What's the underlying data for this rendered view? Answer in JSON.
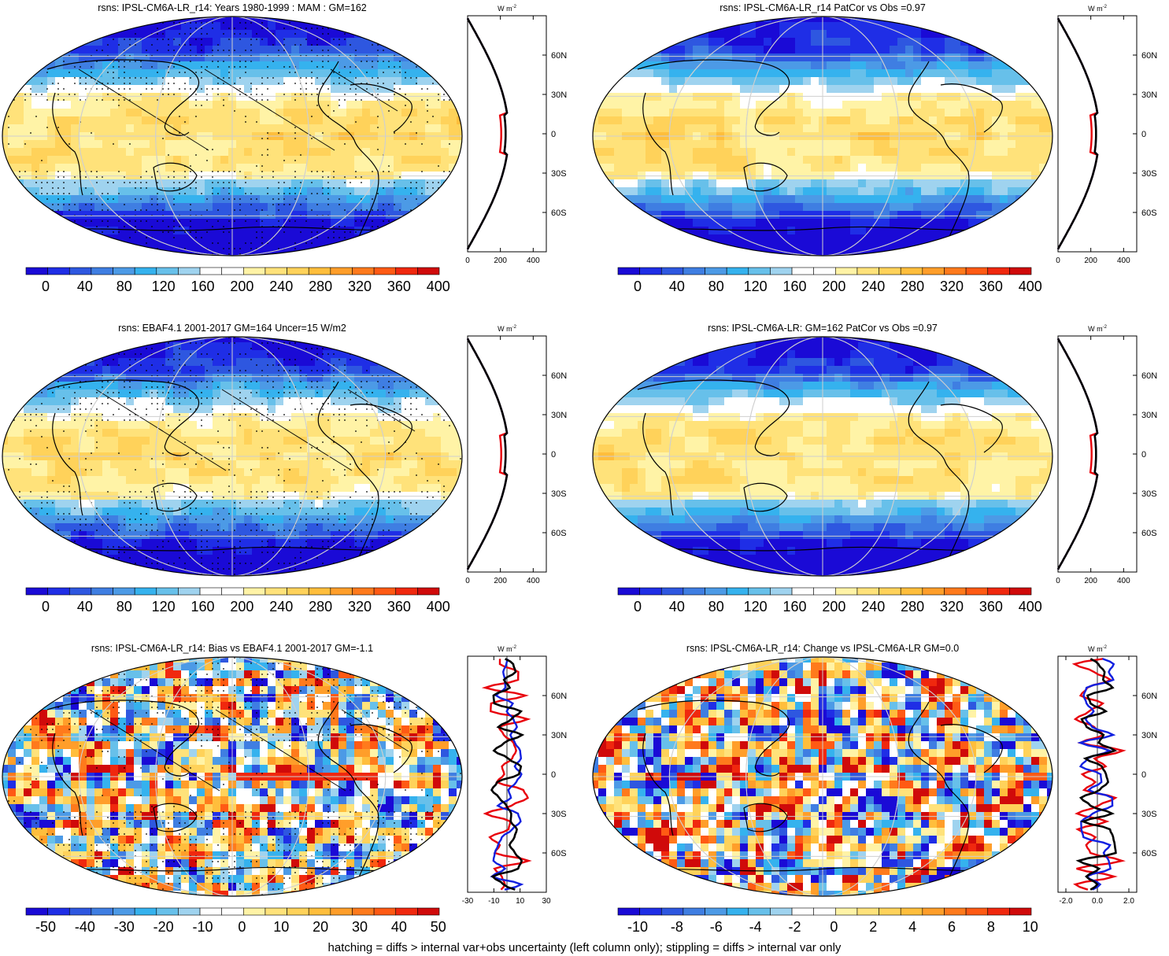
{
  "panels": [
    {
      "title": "rsns: IPSL-CM6A-LR_r14: Years 1980-1999 : MAM : GM=162",
      "scale": "abs",
      "hatch": true,
      "stipple": true,
      "colorbar_labels": [
        "0",
        "40",
        "80",
        "120",
        "160",
        "200",
        "240",
        "280",
        "320",
        "360",
        "400"
      ],
      "profile_xticks": [
        "0",
        "200",
        "400"
      ],
      "profile_range": [
        0,
        480
      ],
      "profile_lat_labels": [
        "60N",
        "30N",
        "0",
        "30S",
        "60S"
      ],
      "profile_unit": "W m-2"
    },
    {
      "title": "rsns: IPSL-CM6A-LR_r14 PatCor vs Obs =0.97",
      "scale": "abs",
      "hatch": false,
      "stipple": false,
      "colorbar_labels": [
        "0",
        "40",
        "80",
        "120",
        "160",
        "200",
        "240",
        "280",
        "320",
        "360",
        "400"
      ],
      "profile_xticks": [
        "0",
        "200",
        "400"
      ],
      "profile_range": [
        0,
        480
      ],
      "profile_lat_labels": [
        "60N",
        "30N",
        "0",
        "30S",
        "60S"
      ],
      "profile_unit": "W m-2"
    },
    {
      "title": "rsns: EBAF4.1 2001-2017 GM=164 Uncer=15 W/m2",
      "scale": "abs",
      "hatch": true,
      "stipple": true,
      "colorbar_labels": [
        "0",
        "40",
        "80",
        "120",
        "160",
        "200",
        "240",
        "280",
        "320",
        "360",
        "400"
      ],
      "profile_xticks": [
        "0",
        "200",
        "400"
      ],
      "profile_range": [
        0,
        480
      ],
      "profile_lat_labels": [
        "60N",
        "30N",
        "0",
        "30S",
        "60S"
      ],
      "profile_unit": "W m-2"
    },
    {
      "title": "rsns: IPSL-CM6A-LR: GM=162 PatCor vs Obs =0.97",
      "scale": "abs",
      "hatch": false,
      "stipple": false,
      "colorbar_labels": [
        "0",
        "40",
        "80",
        "120",
        "160",
        "200",
        "240",
        "280",
        "320",
        "360",
        "400"
      ],
      "profile_xticks": [
        "0",
        "200",
        "400"
      ],
      "profile_range": [
        0,
        480
      ],
      "profile_lat_labels": [
        "60N",
        "30N",
        "0",
        "30S",
        "60S"
      ],
      "profile_unit": "W m-2"
    },
    {
      "title": "rsns: IPSL-CM6A-LR_r14: Bias vs EBAF4.1 2001-2017 GM=-1.1",
      "scale": "bias",
      "hatch": true,
      "stipple": true,
      "colorbar_labels": [
        "-50",
        "-40",
        "-30",
        "-20",
        "-10",
        "0",
        "10",
        "20",
        "30",
        "40",
        "50"
      ],
      "profile_xticks": [
        "-30",
        "-10",
        "10",
        "30"
      ],
      "profile_range": [
        -30,
        30
      ],
      "profile_lat_labels": [
        "60N",
        "30N",
        "0",
        "30S",
        "60S"
      ],
      "profile_unit": "W m-2"
    },
    {
      "title": "rsns: IPSL-CM6A-LR_r14: Change vs IPSL-CM6A-LR GM=0.0",
      "scale": "change",
      "hatch": false,
      "stipple": false,
      "colorbar_labels": [
        "-10",
        "-8",
        "-6",
        "-4",
        "-2",
        "0",
        "2",
        "4",
        "6",
        "8",
        "10"
      ],
      "profile_xticks": [
        "-2.0",
        "0.0",
        "2.0"
      ],
      "profile_range": [
        -2.5,
        2.5
      ],
      "profile_lat_labels": [
        "60N",
        "30N",
        "0",
        "30S",
        "60S"
      ],
      "profile_unit": "W m-2"
    }
  ],
  "palette": [
    "#1a0ad6",
    "#1f2ee6",
    "#2e57e0",
    "#3f7ee2",
    "#4c9ae6",
    "#35b2ee",
    "#67c0ea",
    "#9fd3ef",
    "#ffffff",
    "#ffffff",
    "#fff3a6",
    "#ffe27a",
    "#ffd25a",
    "#ffbe3c",
    "#ff9e2a",
    "#ff7a1c",
    "#ff5a14",
    "#f0280e",
    "#d00a0a"
  ],
  "series_colors": {
    "model": "#e8000b",
    "obs": "#1020e0",
    "mean": "#000000"
  },
  "footer": "hatching = diffs > internal var+obs uncertainty (left column only); stippling = diffs > internal var only"
}
